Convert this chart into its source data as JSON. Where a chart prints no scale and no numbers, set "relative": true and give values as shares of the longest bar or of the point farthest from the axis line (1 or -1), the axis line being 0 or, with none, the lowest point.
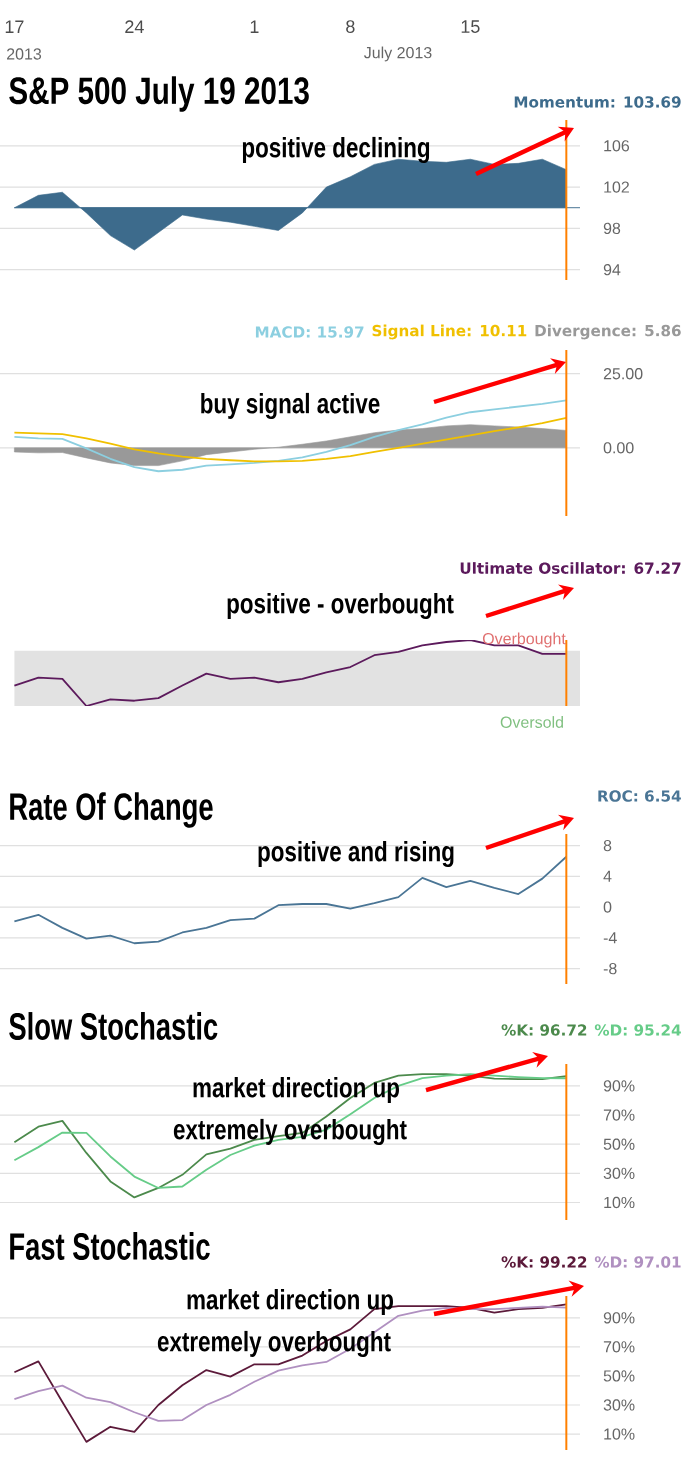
{
  "chart_data": [
    {
      "type": "area",
      "title": "S&P 500 July 19 2013",
      "categories": [
        "17",
        null,
        null,
        null,
        null,
        "24",
        null,
        null,
        null,
        null,
        "1",
        null,
        null,
        null,
        "8",
        null,
        null,
        null,
        null,
        "15",
        null,
        null,
        null,
        null
      ],
      "series": [
        {
          "name": "Momentum: 103.69",
          "color": "#3d6b8c",
          "values": [
            100,
            101.2,
            101.5,
            99.5,
            97.3,
            95.9,
            97.6,
            99.3,
            98.9,
            98.6,
            98.2,
            97.8,
            99.5,
            102,
            103,
            104.2,
            104.7,
            104.5,
            104.4,
            104.7,
            104.2,
            104.3,
            104.7,
            103.69
          ]
        }
      ],
      "ylim": [
        93,
        108.5
      ],
      "yticks": [
        94,
        98,
        102,
        106
      ],
      "grid": "y",
      "legend": "top right",
      "ref_lines": [
        {
          "axis": "y",
          "value": 100,
          "color": "#3d6b8c"
        }
      ],
      "annotations": [
        "2013",
        "July 2013",
        "positive declining"
      ]
    },
    {
      "type": "line",
      "categories": [
        "17",
        null,
        null,
        null,
        null,
        "24",
        null,
        null,
        null,
        null,
        "1",
        null,
        null,
        null,
        "8",
        null,
        null,
        null,
        null,
        "15",
        null,
        null,
        null,
        null
      ],
      "series": [
        {
          "name": "MACD: 15.97",
          "color": "#8ccfe0",
          "values": [
            3.7,
            3.2,
            3.0,
            -0.2,
            -3.7,
            -6.5,
            -7.9,
            -7.4,
            -6,
            -5.6,
            -5.1,
            -4.4,
            -3.2,
            -1.4,
            0.9,
            3.7,
            6,
            7.9,
            10.2,
            12,
            13,
            13.9,
            14.8,
            15.97
          ]
        },
        {
          "name": "Signal Line: 10.11",
          "color": "#f0c000",
          "values": [
            5.1,
            4.9,
            4.6,
            3.2,
            1.4,
            -0.5,
            -1.9,
            -3,
            -3.7,
            -4.2,
            -4.6,
            -4.6,
            -4.4,
            -3.7,
            -2.8,
            -1.4,
            0,
            1.4,
            2.8,
            4.2,
            5.6,
            6.9,
            8.3,
            10.11
          ]
        },
        {
          "name": "Divergence: 5.86",
          "color": "#999999",
          "type": "area",
          "values": [
            -1.4,
            -1.7,
            -1.6,
            -3.4,
            -5.1,
            -6,
            -6,
            -4.4,
            -2.3,
            -1.4,
            -0.5,
            0.2,
            1.2,
            2.3,
            3.7,
            5.1,
            6,
            6.5,
            7.4,
            7.8,
            7.4,
            7,
            6.5,
            5.86
          ]
        }
      ],
      "ylim": [
        -23,
        33
      ],
      "yticks": [
        {
          "value": 0,
          "label": "0.00"
        },
        {
          "value": 25,
          "label": "25.00"
        }
      ],
      "grid": "y",
      "legend": "top right",
      "tick_labels": "y",
      "annotations": [
        "buy signal active"
      ]
    },
    {
      "type": "line",
      "relative": true,
      "categories": [
        "17",
        null,
        null,
        null,
        null,
        "24",
        null,
        null,
        null,
        null,
        "1",
        null,
        null,
        null,
        "8",
        null,
        null,
        null,
        null,
        "15",
        null,
        null,
        null,
        null
      ],
      "series": [
        {
          "name": "Ultimate Oscillator: 67.27",
          "color": "#5c1a5c",
          "values": [
            0.31,
            0.43,
            0.41,
            0,
            0.1,
            0.08,
            0.12,
            0.31,
            0.49,
            0.41,
            0.43,
            0.36,
            0.41,
            0.51,
            0.59,
            0.77,
            0.82,
            0.92,
            0.97,
            1,
            0.92,
            0.92,
            0.79,
            0.79
          ]
        }
      ],
      "bands": [
        {
          "axis": "y",
          "from": 0,
          "to": 0.84,
          "color": "#e2e2e2"
        }
      ],
      "legend": "top right",
      "tick_labels": "y",
      "annotations": [
        "positive - overbought",
        "Overbought",
        "Oversold"
      ]
    },
    {
      "type": "line",
      "title": "Rate Of Change",
      "categories": [
        "17",
        null,
        null,
        null,
        null,
        "24",
        null,
        null,
        null,
        null,
        "1",
        null,
        null,
        null,
        "8",
        null,
        null,
        null,
        null,
        "15",
        null,
        null,
        null,
        null
      ],
      "series": [
        {
          "name": "ROC: 6.54",
          "color": "#4a7595",
          "values": [
            -1.85,
            -1.0,
            -2.7,
            -4.1,
            -3.7,
            -4.7,
            -4.5,
            -3.3,
            -2.7,
            -1.7,
            -1.5,
            0.25,
            0.4,
            0.4,
            -0.2,
            0.5,
            1.3,
            3.8,
            2.6,
            3.4,
            2.5,
            1.7,
            3.7,
            6.54
          ]
        }
      ],
      "ylim": [
        -10,
        9.5
      ],
      "yticks": [
        -8,
        -4,
        0,
        4,
        8
      ],
      "grid": "y",
      "legend": "top right",
      "tick_labels": "y",
      "annotations": [
        "positive and rising"
      ]
    },
    {
      "type": "line",
      "title": "Slow Stochastic",
      "categories": [
        "17",
        null,
        null,
        null,
        null,
        "24",
        null,
        null,
        null,
        null,
        "1",
        null,
        null,
        null,
        "8",
        null,
        null,
        null,
        null,
        "15",
        null,
        null,
        null,
        null
      ],
      "series": [
        {
          "name": "%K: 96.72",
          "color": "#4c8a4c",
          "values": [
            51.4,
            62,
            66,
            44,
            24.5,
            13.5,
            20,
            29,
            43,
            47,
            53,
            55.6,
            57.7,
            69,
            81.7,
            92,
            97,
            98,
            98,
            97,
            95,
            94.6,
            94.6,
            96.72
          ]
        },
        {
          "name": "%D: 95.24",
          "color": "#66cc88",
          "values": [
            39,
            48,
            58,
            57.7,
            41.6,
            27.8,
            20,
            21,
            32.5,
            42.6,
            49,
            53,
            55,
            60,
            70.6,
            81.7,
            90,
            95.3,
            97,
            98,
            97,
            96,
            95.3,
            95.24
          ]
        }
      ],
      "ylim": [
        -2,
        105
      ],
      "yticks": [
        {
          "value": 10,
          "label": "10%"
        },
        {
          "value": 30,
          "label": "30%"
        },
        {
          "value": 50,
          "label": "50%"
        },
        {
          "value": 70,
          "label": "70%"
        },
        {
          "value": 90,
          "label": "90%"
        }
      ],
      "grid": "y",
      "legend": "top right",
      "tick_labels": "y",
      "annotations": [
        "market direction up",
        "extremely overbought"
      ]
    },
    {
      "type": "line",
      "title": "Fast Stochastic",
      "categories": [
        "17",
        null,
        null,
        null,
        null,
        "24",
        null,
        null,
        null,
        null,
        "1",
        null,
        null,
        null,
        "8",
        null,
        null,
        null,
        null,
        "15",
        null,
        null,
        null,
        null
      ],
      "series": [
        {
          "name": "%K: 99.22",
          "color": "#5c1a3a",
          "values": [
            52.5,
            60,
            32,
            4.6,
            15,
            11.5,
            30,
            43.6,
            54,
            49.5,
            58,
            58,
            64,
            74,
            82,
            96,
            98,
            98,
            98,
            96.8,
            93.6,
            96,
            96.8,
            99.22
          ]
        },
        {
          "name": "%D: 97.01",
          "color": "#b090c0",
          "values": [
            34,
            39.6,
            43.3,
            35,
            32,
            25,
            19,
            19.6,
            30,
            37,
            46,
            53.6,
            57.3,
            59.6,
            68.7,
            80,
            91.4,
            95,
            96.8,
            96,
            96,
            96.8,
            97.7,
            97.01
          ]
        }
      ],
      "ylim": [
        -1,
        105
      ],
      "yticks": [
        {
          "value": 10,
          "label": "10%"
        },
        {
          "value": 30,
          "label": "30%"
        },
        {
          "value": 50,
          "label": "50%"
        },
        {
          "value": 70,
          "label": "70%"
        },
        {
          "value": 90,
          "label": "90%"
        }
      ],
      "grid": "y",
      "legend": "top right",
      "tick_labels": "y",
      "annotations": [
        "market direction up",
        "extremely overbought"
      ]
    }
  ]
}
